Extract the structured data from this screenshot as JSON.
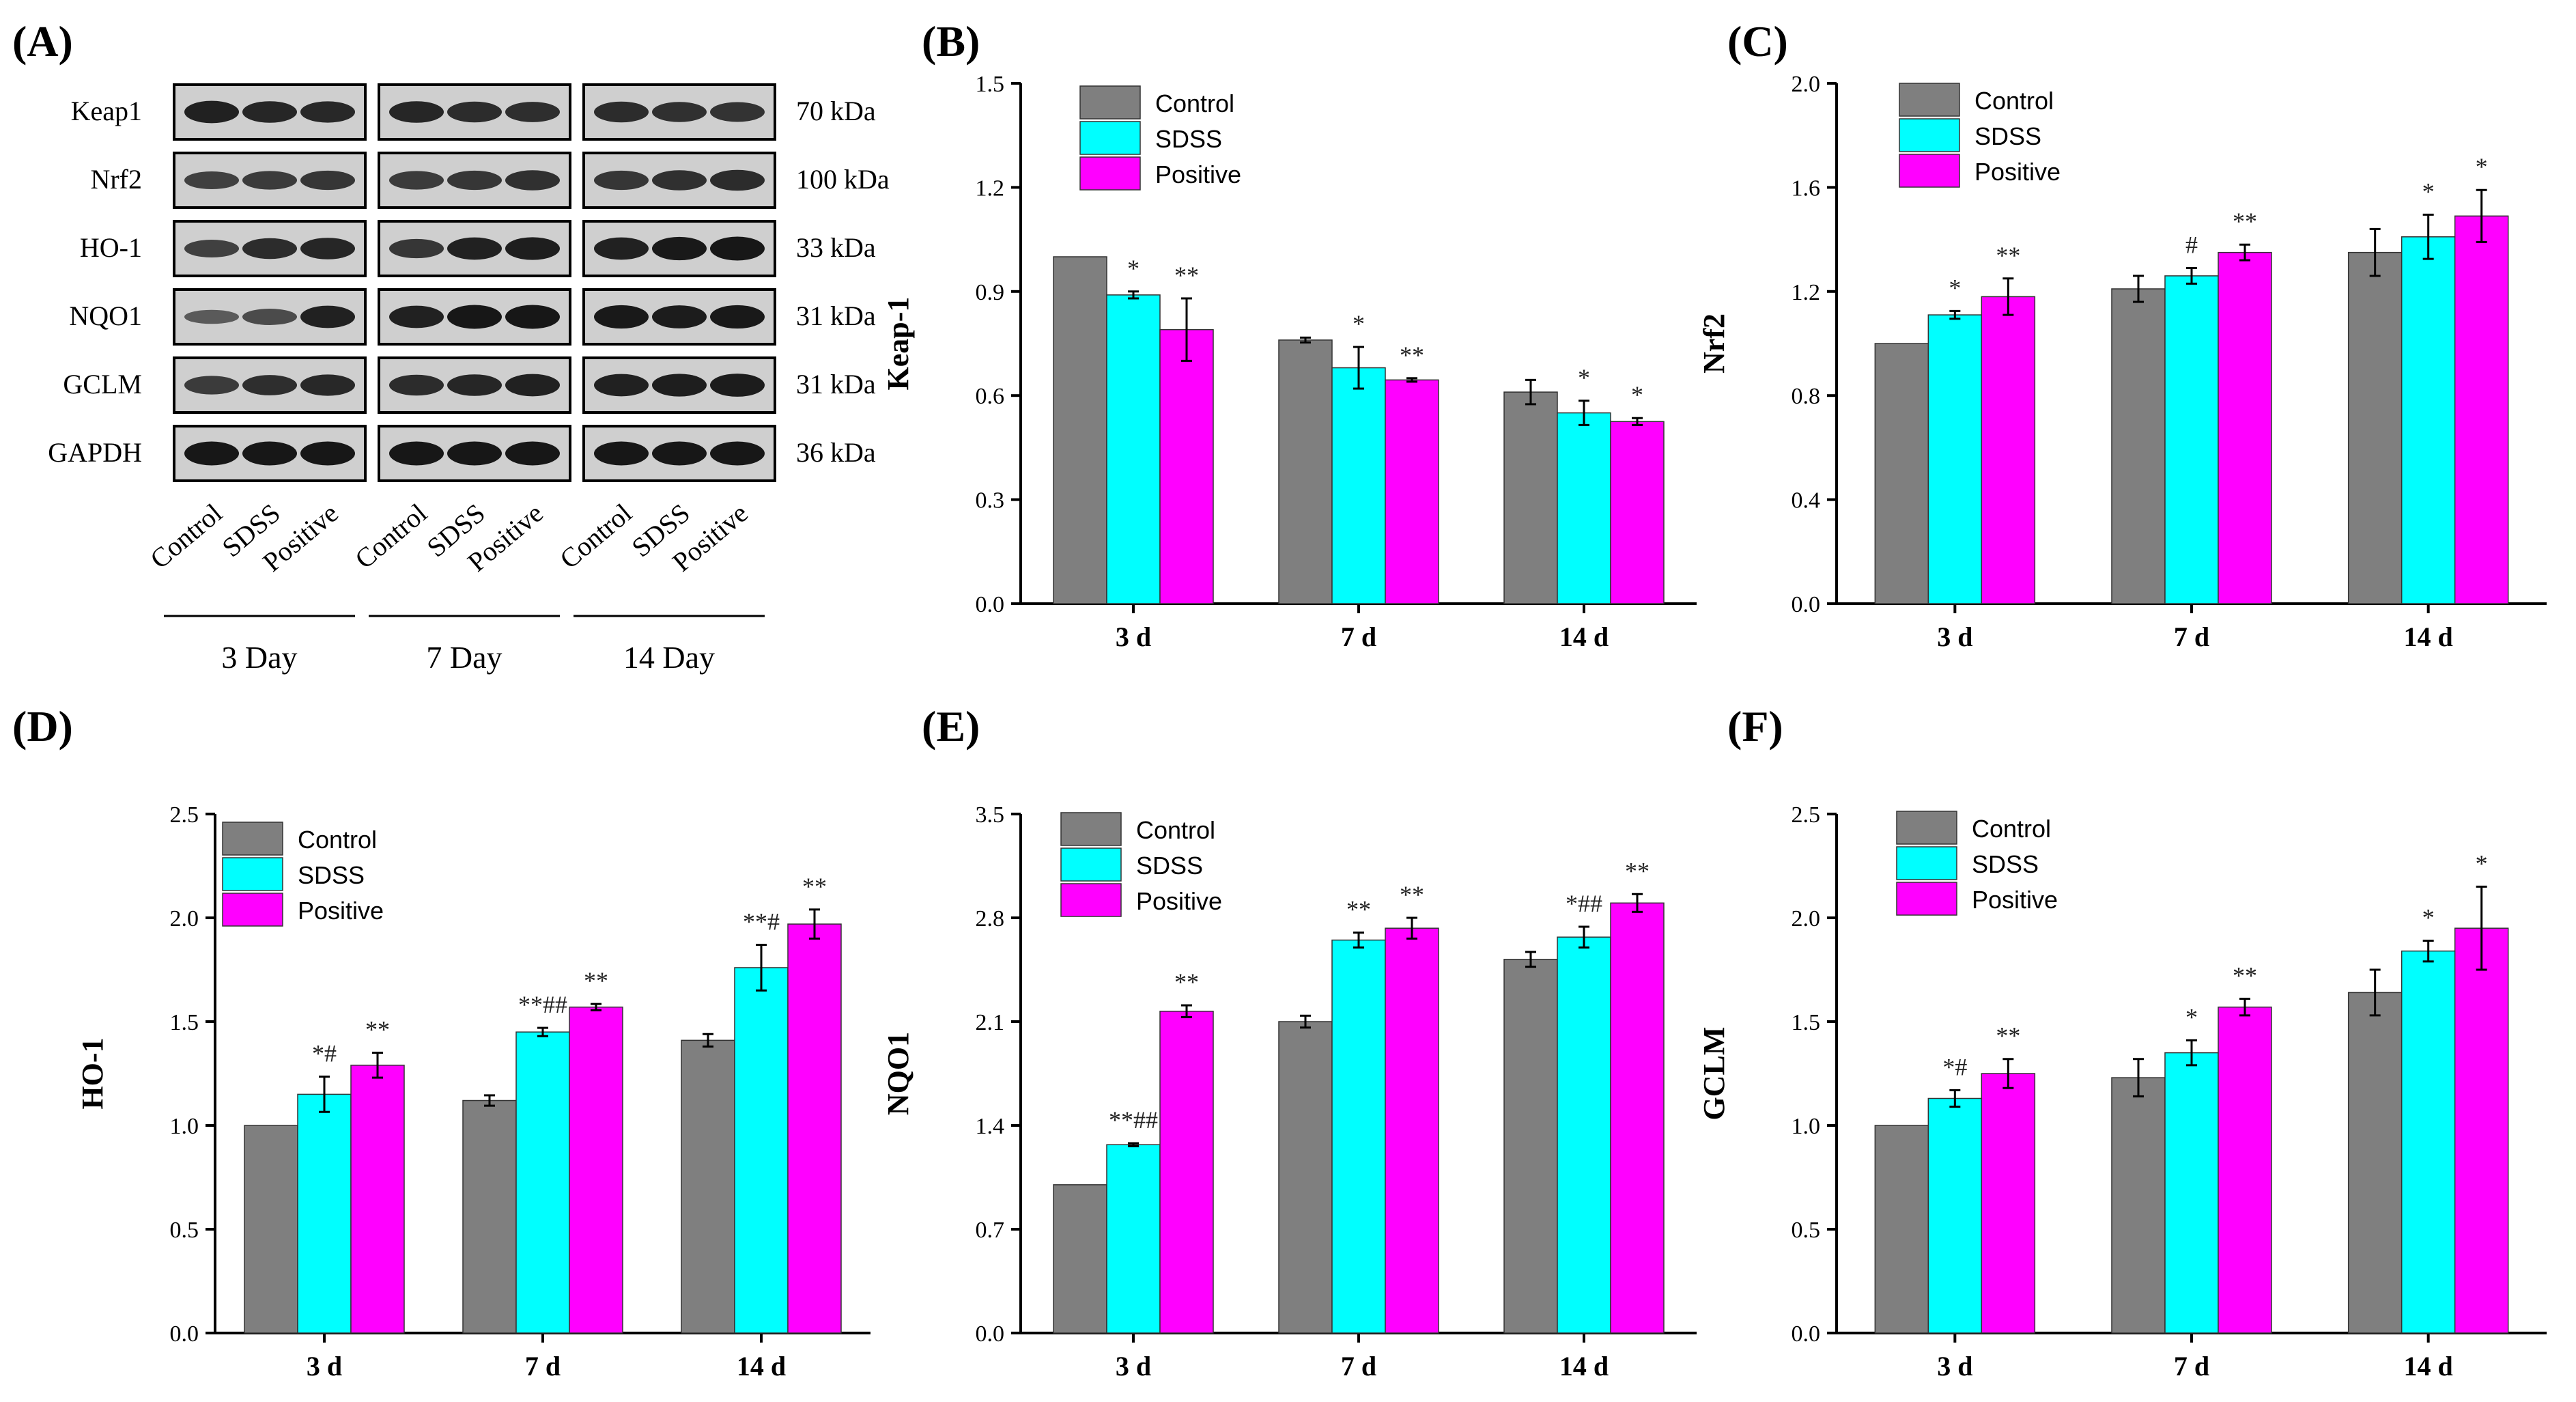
{
  "figure": {
    "panels": {
      "A": "(A)",
      "B": "(B)",
      "C": "(C)",
      "D": "(D)",
      "E": "(E)",
      "F": "(F)"
    }
  },
  "blot": {
    "proteins": [
      "Keap1",
      "Nrf2",
      "HO-1",
      "NQO1",
      "GCLM",
      "GAPDH"
    ],
    "weights": [
      "70 kDa",
      "100 kDa",
      "33 kDa",
      "31 kDa",
      "31 kDa",
      "36 kDa"
    ],
    "lanes": [
      "Control",
      "SDSS",
      "Positive"
    ],
    "days": [
      "3 Day",
      "7 Day",
      "14 Day"
    ],
    "band_intensity": [
      [
        [
          0.85,
          0.8,
          0.78
        ],
        [
          0.8,
          0.75,
          0.72
        ],
        [
          0.75,
          0.7,
          0.68
        ]
      ],
      [
        [
          0.55,
          0.6,
          0.65
        ],
        [
          0.6,
          0.65,
          0.7
        ],
        [
          0.65,
          0.7,
          0.75
        ]
      ],
      [
        [
          0.55,
          0.75,
          0.8
        ],
        [
          0.65,
          0.85,
          0.88
        ],
        [
          0.85,
          0.92,
          0.95
        ]
      ],
      [
        [
          0.3,
          0.45,
          0.85
        ],
        [
          0.85,
          0.95,
          0.95
        ],
        [
          0.92,
          0.9,
          0.92
        ]
      ],
      [
        [
          0.6,
          0.72,
          0.78
        ],
        [
          0.75,
          0.8,
          0.85
        ],
        [
          0.85,
          0.88,
          0.9
        ]
      ],
      [
        [
          0.95,
          0.95,
          0.95
        ],
        [
          0.95,
          0.95,
          0.95
        ],
        [
          0.95,
          0.95,
          0.95
        ]
      ]
    ],
    "colors": {
      "band": "#111111",
      "background": "#cfcfcf",
      "border": "#000000"
    }
  },
  "legend": {
    "labels": [
      "Control",
      "SDSS",
      "Positive"
    ],
    "colors": [
      "#7f7f7f",
      "#00ffff",
      "#ff00ff"
    ]
  },
  "chart_data": [
    {
      "panel": "B",
      "type": "bar",
      "ylabel": "Keap-1",
      "categories": [
        "3 d",
        "7 d",
        "14 d"
      ],
      "ylim": [
        0,
        1.5
      ],
      "yticks": [
        "0.0",
        "0.3",
        "0.6",
        "0.9",
        "1.2",
        "1.5"
      ],
      "series": [
        {
          "name": "Control",
          "values": [
            1.0,
            0.76,
            0.61
          ],
          "errors": [
            0,
            0.007,
            0.035
          ]
        },
        {
          "name": "SDSS",
          "values": [
            0.89,
            0.68,
            0.55
          ],
          "errors": [
            0.01,
            0.06,
            0.035
          ]
        },
        {
          "name": "Positive",
          "values": [
            0.79,
            0.645,
            0.525
          ],
          "errors": [
            0.09,
            0.005,
            0.01
          ]
        }
      ],
      "annotations": [
        [
          "",
          "*",
          "**"
        ],
        [
          "",
          "*",
          "**"
        ],
        [
          "",
          "*",
          "*"
        ]
      ]
    },
    {
      "panel": "C",
      "type": "bar",
      "ylabel": "Nrf2",
      "categories": [
        "3 d",
        "7 d",
        "14 d"
      ],
      "ylim": [
        0,
        2.0
      ],
      "yticks": [
        "0.0",
        "0.4",
        "0.8",
        "1.2",
        "1.6",
        "2.0"
      ],
      "series": [
        {
          "name": "Control",
          "values": [
            1.0,
            1.21,
            1.35
          ],
          "errors": [
            0,
            0.05,
            0.09
          ]
        },
        {
          "name": "SDSS",
          "values": [
            1.11,
            1.26,
            1.41
          ],
          "errors": [
            0.015,
            0.03,
            0.085
          ]
        },
        {
          "name": "Positive",
          "values": [
            1.18,
            1.35,
            1.49
          ],
          "errors": [
            0.07,
            0.03,
            0.1
          ]
        }
      ],
      "annotations": [
        [
          "",
          "*",
          "**"
        ],
        [
          "",
          "#",
          "**"
        ],
        [
          "",
          "*",
          "*"
        ]
      ]
    },
    {
      "panel": "D",
      "type": "bar",
      "ylabel": "HO-1",
      "categories": [
        "3 d",
        "7 d",
        "14 d"
      ],
      "ylim": [
        0,
        2.5
      ],
      "yticks": [
        "0.0",
        "0.5",
        "1.0",
        "1.5",
        "2.0",
        "2.5"
      ],
      "series": [
        {
          "name": "Control",
          "values": [
            1.0,
            1.12,
            1.41
          ],
          "errors": [
            0,
            0.025,
            0.03
          ]
        },
        {
          "name": "SDSS",
          "values": [
            1.15,
            1.45,
            1.76
          ],
          "errors": [
            0.085,
            0.02,
            0.11
          ]
        },
        {
          "name": "Positive",
          "values": [
            1.29,
            1.57,
            1.97
          ],
          "errors": [
            0.06,
            0.015,
            0.07
          ]
        }
      ],
      "annotations": [
        [
          "",
          "*#",
          "**"
        ],
        [
          "",
          "**##",
          "**"
        ],
        [
          "",
          "**#",
          "**"
        ]
      ]
    },
    {
      "panel": "E",
      "type": "bar",
      "ylabel": "NQO1",
      "categories": [
        "3 d",
        "7 d",
        "14 d"
      ],
      "ylim": [
        0,
        3.5
      ],
      "yticks": [
        "0.0",
        "0.7",
        "1.4",
        "2.1",
        "2.8",
        "3.5"
      ],
      "series": [
        {
          "name": "Control",
          "values": [
            1.0,
            2.1,
            2.52
          ],
          "errors": [
            0,
            0.04,
            0.05
          ]
        },
        {
          "name": "SDSS",
          "values": [
            1.27,
            2.65,
            2.67
          ],
          "errors": [
            0.01,
            0.05,
            0.07
          ]
        },
        {
          "name": "Positive",
          "values": [
            2.17,
            2.73,
            2.9
          ],
          "errors": [
            0.04,
            0.07,
            0.06
          ]
        }
      ],
      "annotations": [
        [
          "",
          "**##",
          "**"
        ],
        [
          "",
          "**",
          "**"
        ],
        [
          "",
          "*##",
          "**"
        ]
      ]
    },
    {
      "panel": "F",
      "type": "bar",
      "ylabel": "GCLM",
      "categories": [
        "3 d",
        "7 d",
        "14 d"
      ],
      "ylim": [
        0,
        2.5
      ],
      "yticks": [
        "0.0",
        "0.5",
        "1.0",
        "1.5",
        "2.0",
        "2.5"
      ],
      "series": [
        {
          "name": "Control",
          "values": [
            1.0,
            1.23,
            1.64
          ],
          "errors": [
            0,
            0.09,
            0.11
          ]
        },
        {
          "name": "SDSS",
          "values": [
            1.13,
            1.35,
            1.84
          ],
          "errors": [
            0.04,
            0.06,
            0.05
          ]
        },
        {
          "name": "Positive",
          "values": [
            1.25,
            1.57,
            1.95
          ],
          "errors": [
            0.07,
            0.04,
            0.2
          ]
        }
      ],
      "annotations": [
        [
          "",
          "*#",
          "**"
        ],
        [
          "",
          "*",
          "**"
        ],
        [
          "",
          "*",
          "*"
        ]
      ]
    }
  ]
}
